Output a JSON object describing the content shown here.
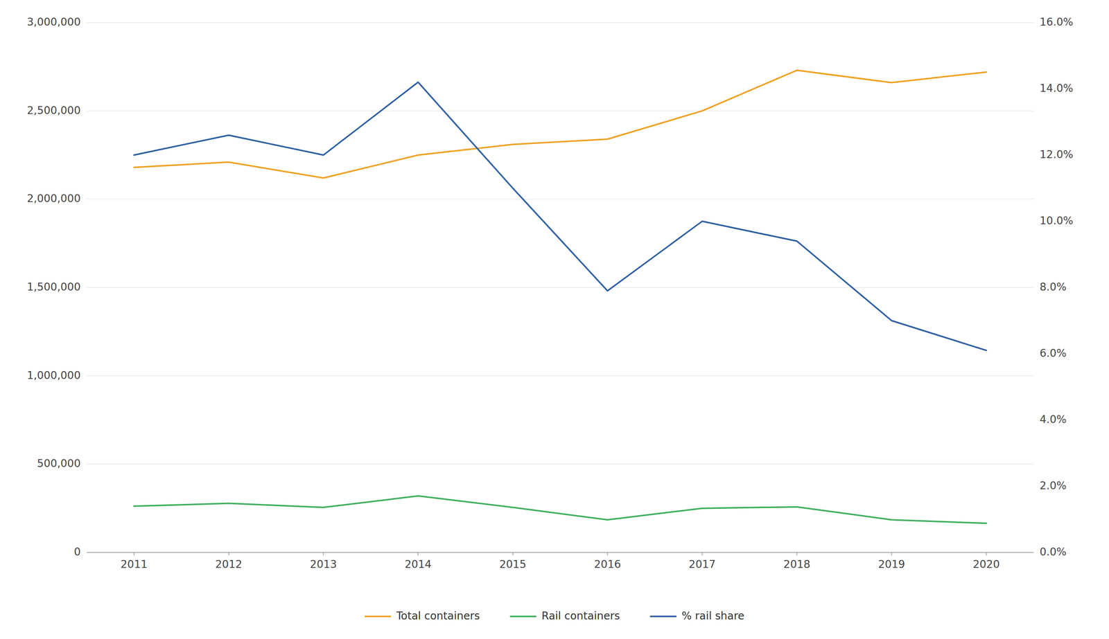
{
  "chart_data": {
    "type": "line",
    "x": [
      2011,
      2012,
      2013,
      2014,
      2015,
      2016,
      2017,
      2018,
      2019,
      2020
    ],
    "xlim": [
      2010.5,
      2020.5
    ],
    "xticks": [
      2011,
      2012,
      2013,
      2014,
      2015,
      2016,
      2017,
      2018,
      2019,
      2020
    ],
    "series": [
      {
        "name": "Total containers",
        "color": "#f0a020",
        "values": [
          2180000,
          2210000,
          2120000,
          2250000,
          2310000,
          2340000,
          2500000,
          2730000,
          2660000,
          2720000
        ]
      },
      {
        "name": "Rail containers",
        "color": "#3daf5c",
        "values": [
          262000,
          278000,
          255000,
          320000,
          255000,
          185000,
          250000,
          258000,
          185000,
          165000
        ]
      },
      {
        "name": "% rail share",
        "color": "#2e5fa3",
        "axis": "y2",
        "values": [
          0.12,
          0.126,
          0.12,
          0.142,
          0.11,
          0.079,
          0.1,
          0.094,
          0.07,
          0.061
        ]
      }
    ],
    "ylim": [
      0,
      3000000
    ],
    "yticks": [
      0,
      {
        "value": 500000,
        "label": "500,000"
      },
      {
        "value": 1000000,
        "label": "1,000,000"
      },
      {
        "value": 1500000,
        "label": "1,500,000"
      },
      {
        "value": 2000000,
        "label": "2,000,000"
      },
      {
        "value": 2500000,
        "label": "2,500,000"
      },
      {
        "value": 3000000,
        "label": "3,000,000"
      }
    ],
    "y2lim": [
      0,
      0.16
    ],
    "y2ticks": [
      {
        "value": 0.0,
        "label": "0.0%"
      },
      {
        "value": 0.02,
        "label": "2.0%"
      },
      {
        "value": 0.04,
        "label": "4.0%"
      },
      {
        "value": 0.06,
        "label": "6.0%"
      },
      {
        "value": 0.08,
        "label": "8.0%"
      },
      {
        "value": 0.1,
        "label": "10.0%"
      },
      {
        "value": 0.12,
        "label": "12.0%"
      },
      {
        "value": 0.14,
        "label": "14.0%"
      },
      {
        "value": 0.16,
        "label": "16.0%"
      }
    ],
    "grid": true,
    "legend": "bottom"
  }
}
